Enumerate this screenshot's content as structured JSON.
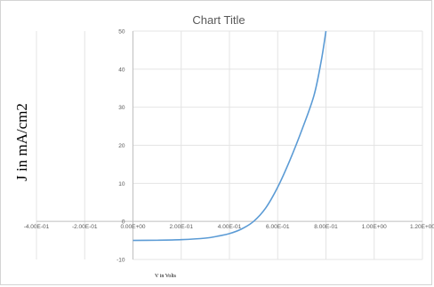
{
  "chart_data": {
    "type": "line",
    "title": "Chart Title",
    "xlabel": "V in Volts",
    "ylabel": "J in mA/cm2",
    "xlim": [
      -0.4,
      1.2
    ],
    "ylim": [
      -10,
      50
    ],
    "x_ticks": [
      -0.4,
      -0.2,
      0.0,
      0.2,
      0.4,
      0.6,
      0.8,
      1.0,
      1.2
    ],
    "x_tick_labels": [
      "-4.00E-01",
      "-2.00E-01",
      "0.00E+00",
      "2.00E-01",
      "4.00E-01",
      "6.00E-01",
      "8.00E-01",
      "1.00E+00",
      "1.20E+00"
    ],
    "y_ticks": [
      -10,
      0,
      10,
      20,
      30,
      40,
      50
    ],
    "y_tick_labels": [
      "-10",
      "0",
      "10",
      "20",
      "30",
      "40",
      "50"
    ],
    "grid": true,
    "legend": "none",
    "series": [
      {
        "color": "#5b9bd5",
        "x": [
          0.0,
          0.1,
          0.2,
          0.3,
          0.35,
          0.4,
          0.45,
          0.5,
          0.55,
          0.6,
          0.65,
          0.7,
          0.75,
          0.78,
          0.8
        ],
        "y": [
          -5.0,
          -4.95,
          -4.8,
          -4.4,
          -3.9,
          -3.2,
          -2.0,
          0.0,
          3.5,
          9.0,
          16.0,
          24.0,
          33.0,
          42.0,
          50.0
        ]
      }
    ]
  }
}
